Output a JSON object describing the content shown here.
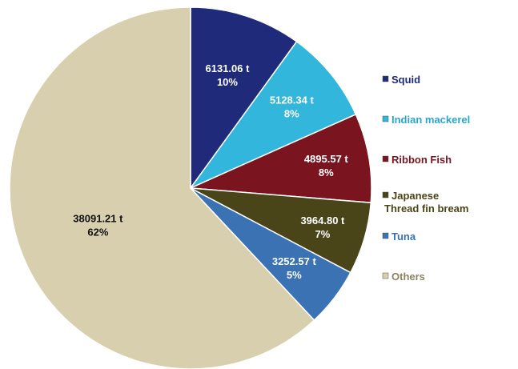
{
  "chart_data": {
    "type": "pie",
    "title": "",
    "legend_position": "right",
    "slices": [
      {
        "name": "Squid",
        "value": 6131.06,
        "value_label": "6131.06 t",
        "percent_label": "10%",
        "color": "#1f2a7a",
        "label_color": "#ffffff",
        "legend_text_color": "#1f2a7a"
      },
      {
        "name": "Indian mackerel",
        "value": 5128.34,
        "value_label": "5128.34 t",
        "percent_label": "8%",
        "color": "#33b6db",
        "label_color": "#ffffff",
        "legend_text_color": "#2aa6cc"
      },
      {
        "name": "Ribbon Fish",
        "value": 4895.57,
        "value_label": "4895.57 t",
        "percent_label": "8%",
        "color": "#7a1520",
        "label_color": "#ffffff",
        "legend_text_color": "#7a1520"
      },
      {
        "name": "Japanese Thread fin bream",
        "legend_lines": [
          "Japanese",
          "Thread fin bream"
        ],
        "value": 3964.8,
        "value_label": "3964.80 t",
        "percent_label": "7%",
        "color": "#4a4419",
        "label_color": "#ffffff",
        "legend_text_color": "#4a4419"
      },
      {
        "name": "Tuna",
        "value": 3252.57,
        "value_label": "3252.57 t",
        "percent_label": "5%",
        "color": "#3a72b3",
        "label_color": "#ffffff",
        "legend_text_color": "#3a72b3"
      },
      {
        "name": "Others",
        "value": 38091.21,
        "value_label": "38091.21 t",
        "percent_label": "62%",
        "color": "#d8cfae",
        "label_color": "#111111",
        "legend_text_color": "#8c8466"
      }
    ]
  }
}
